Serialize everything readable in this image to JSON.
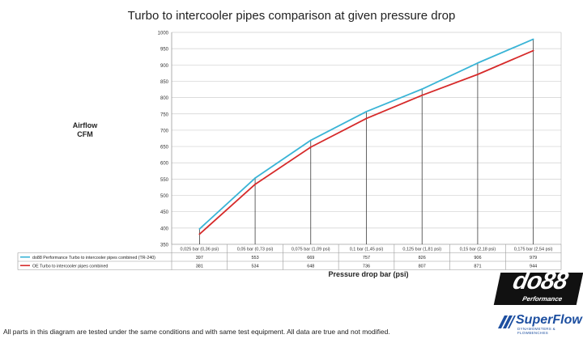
{
  "chart_data": {
    "type": "line",
    "title": "Turbo to intercooler pipes comparison at given pressure drop",
    "ylabel": "Airflow\nCFM",
    "xlabel": "Pressure drop bar (psi)",
    "ylim": [
      350,
      1000
    ],
    "y_ticks": [
      350,
      400,
      450,
      500,
      550,
      600,
      650,
      700,
      750,
      800,
      850,
      900,
      950,
      1000
    ],
    "grid": true,
    "legend": "table below chart",
    "categories": [
      "0,025 bar (0,36 psi)",
      "0,05 bar (0,73 psi)",
      "0,075 bar (1,09 psi)",
      "0,1 bar (1,45 psi)",
      "0,125 bar (1,81 psi)",
      "0,15 bar (2,18 psi)",
      "0,175 bar (2,54 psi)"
    ],
    "series": [
      {
        "name": "do88 Performance Turbo to intercooler pipes combined (TR-240)",
        "color": "#3ab4d6",
        "values": [
          397,
          553,
          669,
          757,
          826,
          906,
          979
        ]
      },
      {
        "name": "OE Turbo to intercooler pipes combined",
        "color": "#d62a2a",
        "values": [
          381,
          534,
          648,
          736,
          807,
          871,
          944
        ]
      }
    ]
  },
  "footnote": "All parts in this diagram are tested under the same conditions and with same test equipment. All data are true and not modified.",
  "logos": {
    "do88": {
      "text": "do88",
      "subtitle": "Performance"
    },
    "superflow": {
      "text": "SuperFlow",
      "subtitle": "DYNAMOMETERS & FLOWBENCHES"
    }
  }
}
